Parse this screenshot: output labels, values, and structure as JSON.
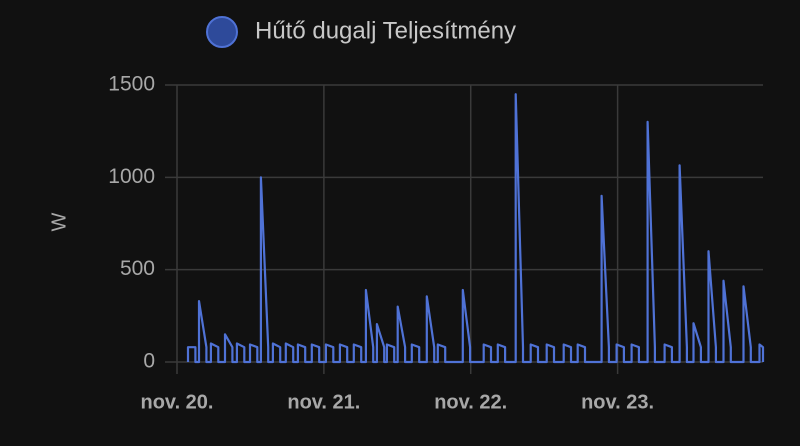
{
  "chart_data": {
    "type": "line",
    "ylabel": "W",
    "ylim": [
      0,
      1500
    ],
    "yticks": [
      0,
      500,
      1000,
      1500
    ],
    "xlim": [
      20,
      23.99
    ],
    "xticks": [
      {
        "value": 20,
        "label": "nov. 20."
      },
      {
        "value": 21,
        "label": "nov. 21."
      },
      {
        "value": 22,
        "label": "nov. 22."
      },
      {
        "value": 23,
        "label": "nov. 23."
      }
    ],
    "grid": true,
    "series": [
      {
        "name": "Hűtő dugalj Teljesítmény",
        "color": "#4f72d6",
        "x": [
          20.075,
          20.075,
          20.125,
          20.125,
          20.15,
          20.15,
          20.2,
          20.2,
          20.231,
          20.231,
          20.281,
          20.281,
          20.327,
          20.327,
          20.377,
          20.377,
          20.408,
          20.408,
          20.458,
          20.458,
          20.497,
          20.497,
          20.547,
          20.547,
          20.571,
          20.571,
          20.621,
          20.621,
          20.653,
          20.653,
          20.703,
          20.703,
          20.741,
          20.741,
          20.791,
          20.791,
          20.823,
          20.823,
          20.873,
          20.873,
          20.918,
          20.918,
          20.968,
          20.968,
          21.014,
          21.014,
          21.064,
          21.064,
          21.109,
          21.109,
          21.159,
          21.159,
          21.204,
          21.204,
          21.254,
          21.254,
          21.286,
          21.286,
          21.336,
          21.336,
          21.361,
          21.361,
          21.411,
          21.411,
          21.429,
          21.429,
          21.479,
          21.479,
          21.503,
          21.503,
          21.553,
          21.553,
          21.599,
          21.599,
          21.649,
          21.649,
          21.701,
          21.701,
          21.751,
          21.751,
          21.776,
          21.776,
          21.826,
          21.826,
          21.946,
          21.946,
          21.996,
          21.996,
          22.088,
          22.088,
          22.138,
          22.138,
          22.184,
          22.184,
          22.234,
          22.234,
          22.306,
          22.306,
          22.356,
          22.356,
          22.408,
          22.408,
          22.458,
          22.458,
          22.517,
          22.517,
          22.567,
          22.567,
          22.633,
          22.633,
          22.683,
          22.683,
          22.728,
          22.728,
          22.778,
          22.778,
          22.891,
          22.891,
          22.941,
          22.941,
          22.993,
          22.993,
          23.043,
          23.043,
          23.095,
          23.095,
          23.145,
          23.145,
          23.204,
          23.204,
          23.254,
          23.254,
          23.32,
          23.32,
          23.37,
          23.37,
          23.422,
          23.422,
          23.472,
          23.472,
          23.517,
          23.517,
          23.567,
          23.567,
          23.619,
          23.619,
          23.669,
          23.669,
          23.721,
          23.721,
          23.771,
          23.771,
          23.857,
          23.857,
          23.907,
          23.907,
          23.966,
          23.966,
          23.99,
          23.99
        ],
        "values": [
          0,
          80,
          80,
          0,
          0,
          330,
          80,
          0,
          0,
          100,
          80,
          0,
          0,
          150,
          80,
          0,
          0,
          100,
          80,
          0,
          0,
          95,
          80,
          0,
          0,
          1000,
          80,
          0,
          0,
          100,
          80,
          0,
          0,
          100,
          80,
          0,
          0,
          95,
          80,
          0,
          0,
          95,
          80,
          0,
          0,
          95,
          80,
          0,
          0,
          95,
          80,
          0,
          0,
          95,
          80,
          0,
          0,
          390,
          80,
          0,
          0,
          205,
          80,
          0,
          0,
          95,
          80,
          0,
          0,
          300,
          80,
          0,
          0,
          95,
          80,
          0,
          0,
          355,
          80,
          0,
          0,
          95,
          80,
          0,
          0,
          390,
          80,
          0,
          0,
          95,
          80,
          0,
          0,
          95,
          80,
          0,
          0,
          1450,
          80,
          0,
          0,
          95,
          80,
          0,
          0,
          95,
          80,
          0,
          0,
          95,
          80,
          0,
          0,
          95,
          80,
          0,
          0,
          900,
          80,
          0,
          0,
          95,
          80,
          0,
          0,
          95,
          80,
          0,
          0,
          1300,
          80,
          0,
          0,
          95,
          80,
          0,
          0,
          1065,
          80,
          0,
          0,
          210,
          80,
          0,
          0,
          600,
          80,
          0,
          0,
          440,
          80,
          0,
          0,
          410,
          80,
          0,
          0,
          95,
          80,
          0
        ]
      }
    ]
  }
}
